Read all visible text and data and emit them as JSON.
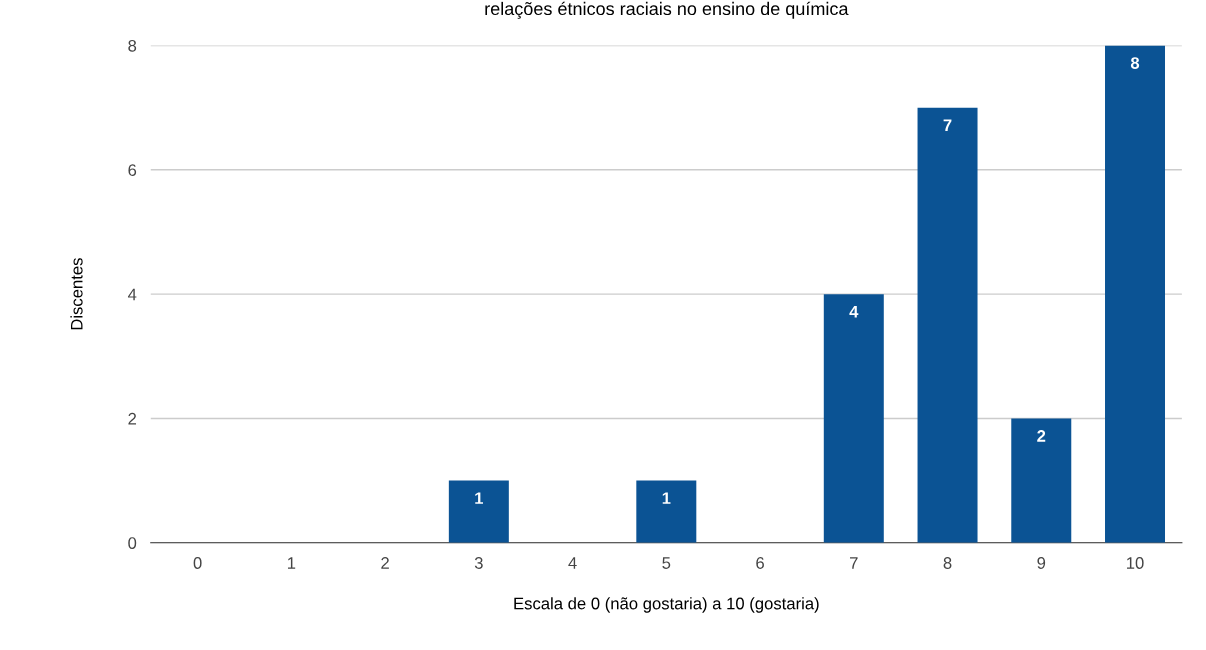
{
  "chart_data": {
    "type": "bar",
    "title": "relações étnicos raciais no ensino de química",
    "xlabel": "Escala de 0 (não gostaria) a 10 (gostaria)",
    "ylabel": "Discentes",
    "categories": [
      "0",
      "1",
      "2",
      "3",
      "4",
      "5",
      "6",
      "7",
      "8",
      "9",
      "10"
    ],
    "values": [
      0,
      0,
      0,
      1,
      0,
      1,
      0,
      4,
      7,
      2,
      8
    ],
    "value_labels": [
      null,
      null,
      null,
      "1",
      null,
      "1",
      null,
      "4",
      "7",
      "2",
      "8"
    ],
    "color": "#0b5394",
    "ylim": [
      0,
      8
    ],
    "yticks": [
      0,
      2,
      4,
      6,
      8
    ],
    "grid": "y",
    "legend": false
  }
}
